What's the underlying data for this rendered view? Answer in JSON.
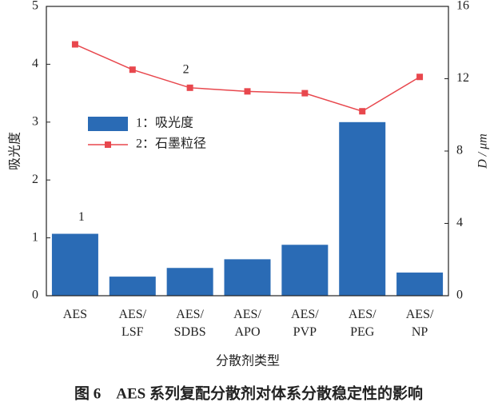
{
  "chart_data": {
    "type": "bar-line",
    "categories": [
      "AES",
      "AES/\nLSF",
      "AES/\nSDBS",
      "AES/\nAPO",
      "AES/\nPVP",
      "AES/\nPEG",
      "AES/\nNP"
    ],
    "series": [
      {
        "name": "1：吸光度",
        "type": "bar",
        "color": "#2a6bb5",
        "values": [
          1.07,
          0.33,
          0.48,
          0.63,
          0.88,
          3.0,
          0.4
        ]
      },
      {
        "name": "2：石墨粒径",
        "type": "line",
        "axis": "y2",
        "color": "#e8474d",
        "values": [
          13.9,
          12.5,
          11.5,
          11.3,
          11.2,
          10.2,
          12.1
        ]
      }
    ],
    "ylim": [
      0,
      5
    ],
    "yticks": [
      0,
      1,
      2,
      3,
      4,
      5
    ],
    "y2lim": [
      0,
      16
    ],
    "y2ticks": [
      0,
      4,
      8,
      12,
      16
    ],
    "xlabel": "分散剂类型",
    "ylabel": "吸光度",
    "y2label": "D / μm",
    "annotations": [
      {
        "text": "1",
        "series": 0,
        "index": 0
      },
      {
        "text": "2",
        "series": 1,
        "index": 2
      }
    ],
    "caption": "图 6　AES 系列复配分散剂对体系分散稳定性的影响"
  }
}
